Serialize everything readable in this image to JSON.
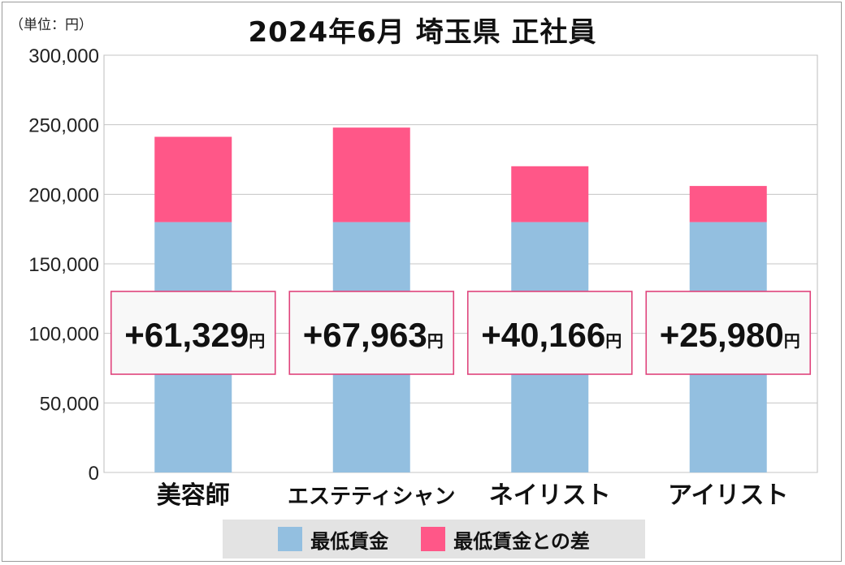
{
  "unit_label": "（単位：円）",
  "colors": {
    "minimum_wage": "#93bfe0",
    "difference": "#ff5788",
    "box_border": "#e0447c"
  },
  "chart_data": {
    "type": "bar",
    "stacked": true,
    "title": "2024年6月 埼玉県 正社員",
    "categories": [
      "美容師",
      "エステティシャン",
      "ネイリスト",
      "アイリスト"
    ],
    "series": [
      {
        "name": "最低賃金",
        "values": [
          180000,
          180000,
          180000,
          180000
        ]
      },
      {
        "name": "最低賃金との差",
        "values": [
          61329,
          67963,
          40166,
          25980
        ]
      }
    ],
    "difference_labels": [
      "+61,329",
      "+67,963",
      "+40,166",
      "+25,980"
    ],
    "difference_unit": "円",
    "ylim": [
      0,
      300000
    ],
    "yticks": [
      0,
      50000,
      100000,
      150000,
      200000,
      250000,
      300000
    ],
    "ytick_labels": [
      "0",
      "50,000",
      "100,000",
      "150,000",
      "200,000",
      "250,000",
      "300,000"
    ],
    "grid": true,
    "legend_position": "bottom"
  }
}
